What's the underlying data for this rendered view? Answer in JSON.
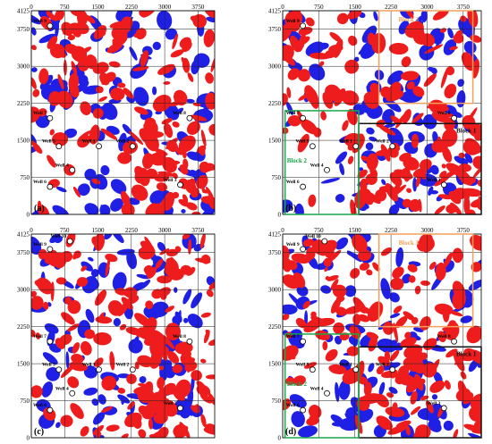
{
  "axis": {
    "x_ticks": [
      "0",
      "750",
      "1500",
      "2250",
      "3000",
      "3750"
    ],
    "y_ticks": [
      "4125",
      "3750",
      "3000",
      "2250",
      "1500",
      "750",
      "0"
    ],
    "x_range": [
      0,
      4125
    ],
    "y_range": [
      0,
      4125
    ]
  },
  "colors": {
    "red": "#ee1c1c",
    "blue": "#1f1fe6",
    "grid": "#222222",
    "block1": "#111111",
    "block2": "#1aa64a",
    "block3": "#f2a05a"
  },
  "wells": [
    {
      "name": "Well 9",
      "x": 420,
      "y": 3820
    },
    {
      "name": "Well 10",
      "x": 870,
      "y": 3980
    },
    {
      "name": "Well 7",
      "x": 420,
      "y": 1950
    },
    {
      "name": "Well 8",
      "x": 3560,
      "y": 1950
    },
    {
      "name": "Well 5",
      "x": 620,
      "y": 1380
    },
    {
      "name": "Well 1",
      "x": 1520,
      "y": 1380
    },
    {
      "name": "Well 2",
      "x": 2280,
      "y": 1380
    },
    {
      "name": "Well 4",
      "x": 920,
      "y": 900
    },
    {
      "name": "Well 3",
      "x": 3350,
      "y": 600
    },
    {
      "name": "Well 6",
      "x": 420,
      "y": 560
    }
  ],
  "panels": [
    {
      "id": "a",
      "tag": "(a)",
      "show_blocks": false,
      "show_well10": false
    },
    {
      "id": "b",
      "tag": "(b)",
      "show_blocks": true,
      "show_well10": false
    },
    {
      "id": "c",
      "tag": "(c)",
      "show_blocks": false,
      "show_well10": true
    },
    {
      "id": "d",
      "tag": "(d)",
      "show_blocks": true,
      "show_well10": true
    }
  ],
  "blocks": [
    {
      "name": "Block 1",
      "x0": 1580,
      "x1": 4125,
      "y0": 0,
      "y1": 1840
    },
    {
      "name": "Block 2",
      "x0": 50,
      "x1": 1580,
      "y0": 0,
      "y1": 2100
    },
    {
      "name": "Block 3",
      "x0": 2000,
      "x1": 3950,
      "y0": 2250,
      "y1": 4125
    }
  ]
}
